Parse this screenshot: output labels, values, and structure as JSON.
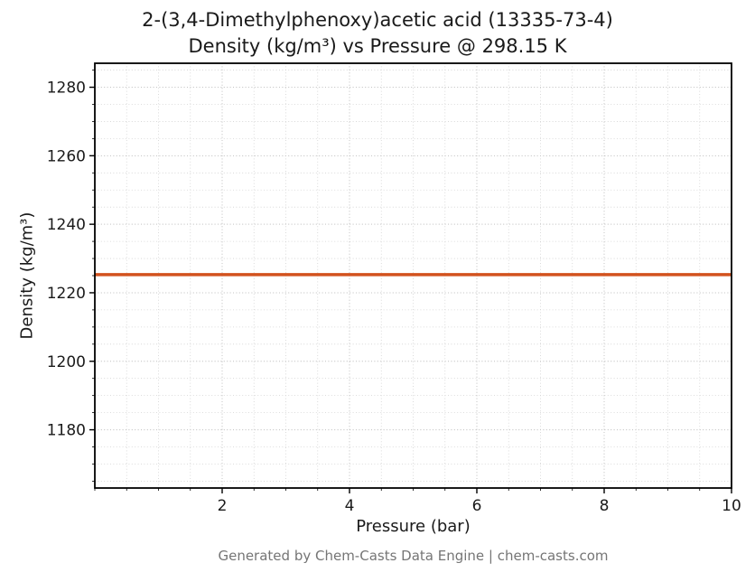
{
  "footer": "Generated by Chem-Casts Data Engine | chem-casts.com",
  "chart_data": {
    "type": "line",
    "title_line1": "2-(3,4-Dimethylphenoxy)acetic acid (13335-73-4)",
    "title_line2": "Density (kg/m³) vs Pressure @ 298.15 K",
    "xlabel": "Pressure (bar)",
    "ylabel": "Density (kg/m³)",
    "x": [
      0,
      10
    ],
    "series": [
      {
        "name": "Density",
        "values": [
          1225.3,
          1225.3
        ]
      }
    ],
    "density_value": 1225.3,
    "temperature_K": "298.15",
    "xlim": [
      0,
      10
    ],
    "ylim": [
      1163,
      1287
    ],
    "xticks": [
      2,
      4,
      6,
      8,
      10
    ],
    "yticks": [
      1180,
      1200,
      1220,
      1240,
      1260,
      1280
    ],
    "minor_x_step": 0.5,
    "minor_y_step": 5,
    "grid": true,
    "legend": "none",
    "line_color": "#d2521e",
    "grid_minor_color": "#d2d2d2",
    "grid_major_color": "#c4c4c4",
    "spine_color": "#000000",
    "tick_color": "#1a1a1a"
  }
}
